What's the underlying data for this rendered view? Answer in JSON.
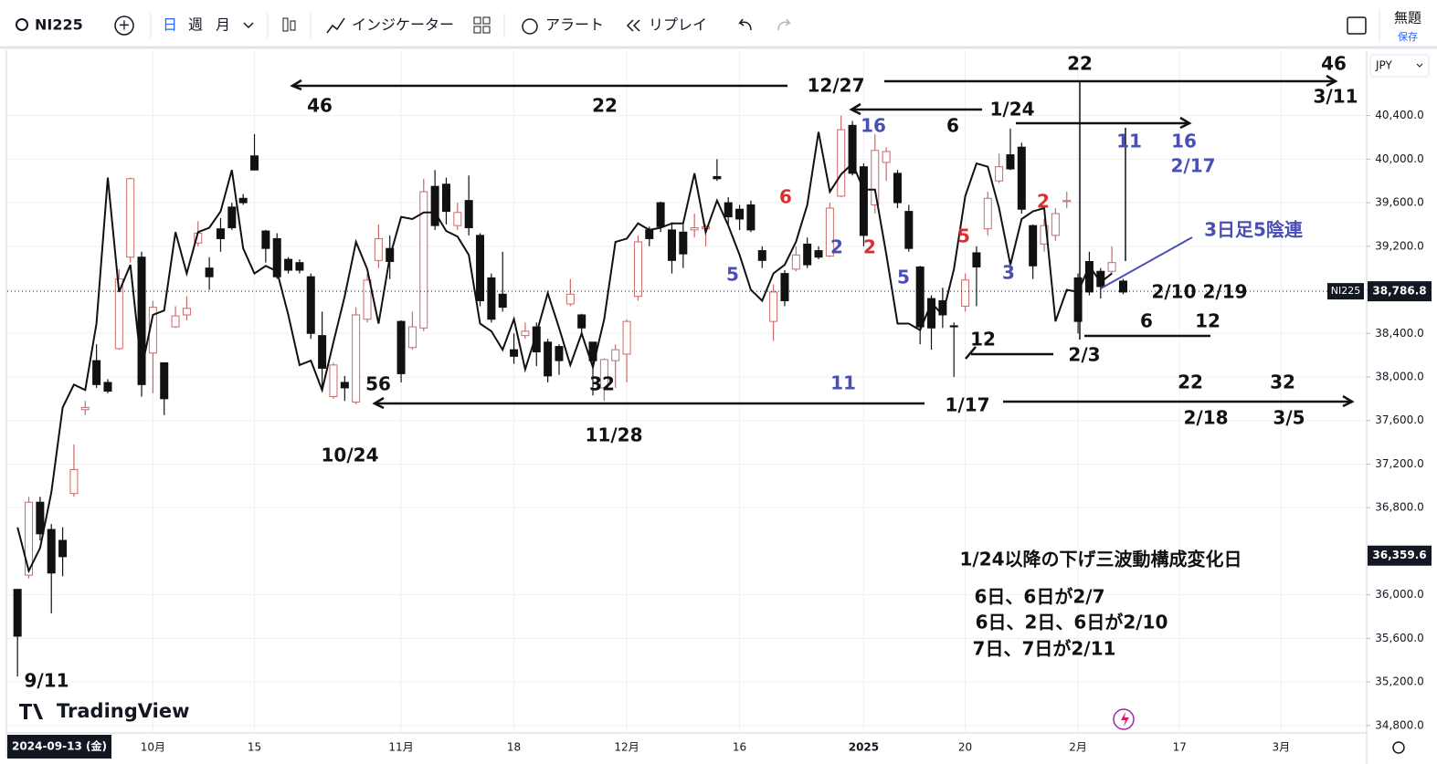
{
  "ui": {
    "symbol": "NI225",
    "timeframes": [
      "日",
      "週",
      "月"
    ],
    "indicators": "インジケーター",
    "alert": "アラート",
    "replay": "リプレイ",
    "layout_name": "無題",
    "save": "保存",
    "currency": "JPY",
    "cursor_date": "2024-09-13 (金)",
    "logo": "TradingView"
  },
  "chart_data": {
    "type": "candlestick",
    "categories": [
      null,
      null,
      null,
      null,
      null,
      null,
      null,
      null,
      null,
      null,
      null,
      null,
      "10月",
      null,
      null,
      null,
      null,
      null,
      null,
      null,
      null,
      "15",
      null,
      null,
      null,
      null,
      null,
      null,
      null,
      null,
      null,
      null,
      null,
      null,
      "11月",
      null,
      null,
      null,
      null,
      null,
      null,
      null,
      null,
      null,
      "18",
      null,
      null,
      null,
      null,
      null,
      null,
      null,
      null,
      null,
      "12月",
      null,
      null,
      null,
      null,
      null,
      null,
      null,
      null,
      null,
      "16",
      null,
      null,
      null,
      null,
      null,
      null,
      null,
      null,
      null,
      null,
      "2025",
      null,
      null,
      null,
      null,
      null,
      null,
      null,
      null,
      "20",
      null,
      null,
      null,
      null,
      null,
      null,
      null,
      null,
      null,
      "2月",
      null,
      null,
      null,
      null,
      null,
      null,
      null,
      null,
      "17",
      null,
      null,
      null,
      null,
      null,
      null,
      null,
      null,
      "3月",
      null,
      null,
      null,
      null,
      null,
      null,
      null
    ],
    "open": [
      36050,
      36180,
      36850,
      36600,
      36500,
      36930,
      37700,
      38150,
      37950,
      38260,
      39100,
      39100,
      38220,
      38130,
      38460,
      38570,
      39230,
      39000,
      39360,
      39560,
      39640,
      40030,
      39340,
      39270,
      39080,
      39050,
      38920,
      38380,
      37820,
      37950,
      37770,
      38530,
      39070,
      39180,
      38510,
      38270,
      38450,
      39750,
      39770,
      39390,
      39620,
      39300,
      38910,
      38760,
      38250,
      38380,
      38460,
      38320,
      38280,
      38670,
      38570,
      38320,
      37900,
      38150,
      38210,
      38740,
      39350,
      39600,
      39350,
      39330,
      39350,
      39360,
      39840,
      39600,
      39540,
      39580,
      39160,
      38510,
      38950,
      38990,
      39220,
      39160,
      39110,
      39660,
      40310,
      39930,
      39580,
      39970,
      39870,
      39520,
      39010,
      38720,
      38700,
      38470,
      38650,
      39140,
      39360,
      39800,
      40040,
      40110,
      39390,
      39220,
      39300,
      39610,
      38910,
      39060,
      38970,
      38970,
      38880,
      null,
      null,
      null,
      null,
      null,
      null,
      null,
      null,
      null,
      null,
      null,
      null,
      null,
      null,
      null,
      null,
      null,
      null,
      null,
      null,
      null
    ],
    "high": [
      36050,
      36900,
      36900,
      36650,
      36620,
      37380,
      37780,
      38300,
      37980,
      38990,
      39830,
      39150,
      38700,
      38130,
      38650,
      38740,
      39430,
      39100,
      39460,
      39600,
      39680,
      40230,
      39350,
      39320,
      39100,
      39080,
      38950,
      38600,
      38130,
      38010,
      38640,
      38950,
      39400,
      39300,
      38520,
      38600,
      39820,
      39900,
      39830,
      39600,
      39850,
      39320,
      38950,
      39150,
      38400,
      38500,
      38500,
      38350,
      38300,
      38900,
      38580,
      38320,
      38170,
      38300,
      38530,
      39300,
      39380,
      39610,
      39420,
      39400,
      39500,
      39400,
      40000,
      39650,
      39580,
      39620,
      39200,
      38850,
      38980,
      39200,
      39280,
      39200,
      39600,
      40400,
      40350,
      39960,
      40230,
      40110,
      39900,
      39580,
      39020,
      38750,
      38820,
      38500,
      38950,
      39200,
      39700,
      40050,
      40280,
      40150,
      39400,
      39450,
      39550,
      39700,
      38950,
      39150,
      39000,
      39200,
      38900,
      null,
      null,
      null,
      null,
      null,
      null,
      null,
      null,
      null,
      null,
      null,
      null,
      null,
      null,
      null,
      null,
      null,
      null,
      null,
      null,
      null
    ],
    "low": [
      35250,
      36150,
      36500,
      35830,
      36170,
      36900,
      37650,
      37900,
      37850,
      38250,
      39050,
      37820,
      37850,
      37650,
      38450,
      38520,
      39200,
      38800,
      39150,
      39350,
      39580,
      39900,
      39050,
      38900,
      38950,
      38950,
      38350,
      37900,
      37800,
      37780,
      37750,
      38500,
      39000,
      38900,
      37950,
      38250,
      38420,
      39350,
      39400,
      39350,
      39300,
      38650,
      38500,
      38600,
      38120,
      38350,
      38100,
      37950,
      38020,
      38650,
      38400,
      37830,
      37780,
      37900,
      37950,
      38700,
      39200,
      39330,
      38950,
      39000,
      39280,
      39200,
      39800,
      39400,
      39350,
      39330,
      39000,
      38330,
      38650,
      38970,
      39000,
      39080,
      39100,
      39650,
      39850,
      39200,
      39500,
      39800,
      39550,
      39150,
      38300,
      38250,
      38450,
      38000,
      38600,
      38650,
      39300,
      39780,
      39900,
      39500,
      38900,
      39150,
      39250,
      39550,
      38400,
      38750,
      38720,
      38950,
      38760,
      null,
      null,
      null,
      null,
      null,
      null,
      null,
      null,
      null,
      null,
      null,
      null,
      null,
      null,
      null,
      null,
      null,
      null,
      null,
      null,
      null
    ],
    "close": [
      35620,
      36850,
      36560,
      36200,
      36350,
      37150,
      37720,
      37930,
      37870,
      38900,
      39820,
      37930,
      38640,
      37800,
      38560,
      38630,
      39320,
      38920,
      39270,
      39370,
      39600,
      39900,
      39180,
      38920,
      38980,
      38980,
      38400,
      38080,
      38110,
      37900,
      38570,
      38890,
      39270,
      39060,
      38030,
      38460,
      39700,
      39390,
      39520,
      39510,
      39370,
      38700,
      38530,
      38640,
      38190,
      38420,
      38230,
      38010,
      38150,
      38760,
      38450,
      38150,
      38160,
      38250,
      38510,
      39240,
      39270,
      39380,
      39070,
      39130,
      39370,
      39380,
      39820,
      39470,
      39450,
      39350,
      39070,
      38780,
      38700,
      39120,
      39030,
      39100,
      39550,
      40270,
      39870,
      39300,
      40080,
      40070,
      39600,
      39180,
      38460,
      38450,
      38570,
      38460,
      38890,
      39010,
      39640,
      39930,
      39910,
      39540,
      39020,
      39390,
      39500,
      39620,
      38510,
      38780,
      38830,
      39050,
      38780,
      null,
      null,
      null,
      null,
      null,
      null,
      null,
      null,
      null,
      null,
      null,
      null,
      null,
      null,
      null,
      null,
      null,
      null,
      null,
      null,
      null
    ],
    "up_color": "#c86a6a",
    "down_color": "#111111",
    "line": {
      "color": "#111111",
      "values": [
        36620,
        36220,
        36430,
        36940,
        37720,
        37930,
        37880,
        38490,
        39830,
        38780,
        39030,
        38070,
        38570,
        38610,
        39330,
        38950,
        39330,
        39370,
        39520,
        39900,
        39180,
        38950,
        39020,
        38970,
        38570,
        38110,
        38150,
        37880,
        38320,
        38740,
        39240,
        38990,
        38490,
        39100,
        39470,
        39450,
        39510,
        39510,
        39340,
        39290,
        39120,
        38490,
        38420,
        38250,
        38530,
        38070,
        38400,
        38770,
        38450,
        38110,
        38400,
        38090,
        38530,
        39240,
        39270,
        39410,
        39350,
        39370,
        39410,
        39410,
        39870,
        39330,
        39620,
        39390,
        39120,
        38800,
        38700,
        38950,
        39030,
        39240,
        39580,
        40250,
        39700,
        39860,
        39960,
        39720,
        39720,
        39130,
        38490,
        38490,
        38430,
        38680,
        38570,
        38990,
        39660,
        39960,
        39930,
        39550,
        39030,
        39450,
        39520,
        39550,
        38510,
        38800,
        38780,
        39020,
        38870,
        38950,
        null,
        null,
        null,
        null,
        null,
        null,
        null,
        null,
        null,
        null,
        null,
        null,
        null,
        null,
        null,
        null,
        null,
        null,
        null,
        null,
        null,
        null
      ]
    },
    "ylim": [
      34740,
      41000
    ],
    "yticks": [
      {
        "value": 40400,
        "label": "40,400.0"
      },
      {
        "value": 40000,
        "label": "40,000.0"
      },
      {
        "value": 39600,
        "label": "39,600.0"
      },
      {
        "value": 39200,
        "label": "39,200.0"
      },
      {
        "value": 38800,
        "label": "38,800.0"
      },
      {
        "value": 38400,
        "label": "38,400.0"
      },
      {
        "value": 38000,
        "label": "38,000.0"
      },
      {
        "value": 37600,
        "label": "37,600.0"
      },
      {
        "value": 37200,
        "label": "37,200.0"
      },
      {
        "value": 36800,
        "label": "36,800.0"
      },
      {
        "value": 36000,
        "label": "36,000.0"
      },
      {
        "value": 35600,
        "label": "35,600.0"
      },
      {
        "value": 35200,
        "label": "35,200.0"
      },
      {
        "value": 34800,
        "label": "34,800.0"
      }
    ],
    "grid": true,
    "grid_color": "#eef0f4",
    "price_markers": [
      {
        "name": "NI225",
        "value": 38786.8,
        "label": "38,786.8"
      },
      {
        "value": 36359.6,
        "label": "36,359.6"
      }
    ],
    "annotations": [
      {
        "text": "46",
        "color": "#111111"
      },
      {
        "text": "22",
        "color": "#111111"
      },
      {
        "text": "12/27",
        "color": "#111111"
      },
      {
        "text": "22",
        "color": "#111111"
      },
      {
        "text": "46",
        "color": "#111111"
      },
      {
        "text": "3/11",
        "color": "#111111"
      },
      {
        "text": "16",
        "color": "#4a4fb5"
      },
      {
        "text": "6",
        "color": "#111111"
      },
      {
        "text": "1/24",
        "color": "#111111"
      },
      {
        "text": "11",
        "color": "#4a4fb5"
      },
      {
        "text": "16",
        "color": "#4a4fb5"
      },
      {
        "text": "2/17",
        "color": "#4a4fb5"
      },
      {
        "text": "6",
        "color": "#d93030"
      },
      {
        "text": "2",
        "color": "#d93030"
      },
      {
        "text": "3日足5陰連",
        "color": "#4a4fb5"
      },
      {
        "text": "5",
        "color": "#d93030"
      },
      {
        "text": "2",
        "color": "#4a4fb5"
      },
      {
        "text": "2",
        "color": "#d93030"
      },
      {
        "text": "5",
        "color": "#4a4fb5"
      },
      {
        "text": "5",
        "color": "#4a4fb5"
      },
      {
        "text": "3",
        "color": "#4a4fb5"
      },
      {
        "text": "2/10 2/19",
        "color": "#111111"
      },
      {
        "text": "6",
        "color": "#111111"
      },
      {
        "text": "12",
        "color": "#111111"
      },
      {
        "text": "12",
        "color": "#111111"
      },
      {
        "text": "2/3",
        "color": "#111111"
      },
      {
        "text": "56",
        "color": "#111111"
      },
      {
        "text": "32",
        "color": "#111111"
      },
      {
        "text": "11",
        "color": "#4a4fb5"
      },
      {
        "text": "22",
        "color": "#111111"
      },
      {
        "text": "32",
        "color": "#111111"
      },
      {
        "text": "1/17",
        "color": "#111111"
      },
      {
        "text": "2/18",
        "color": "#111111"
      },
      {
        "text": "3/5",
        "color": "#111111"
      },
      {
        "text": "11/28",
        "color": "#111111"
      },
      {
        "text": "10/24",
        "color": "#111111"
      },
      {
        "text": "1/24以降の下げ三波動構成変化日",
        "color": "#111111"
      },
      {
        "text": "6日、6日が2/7",
        "color": "#111111"
      },
      {
        "text": "6日、2日、6日が2/10",
        "color": "#111111"
      },
      {
        "text": "7日、7日が2/11",
        "color": "#111111"
      },
      {
        "text": "9/11",
        "color": "#111111"
      }
    ]
  }
}
